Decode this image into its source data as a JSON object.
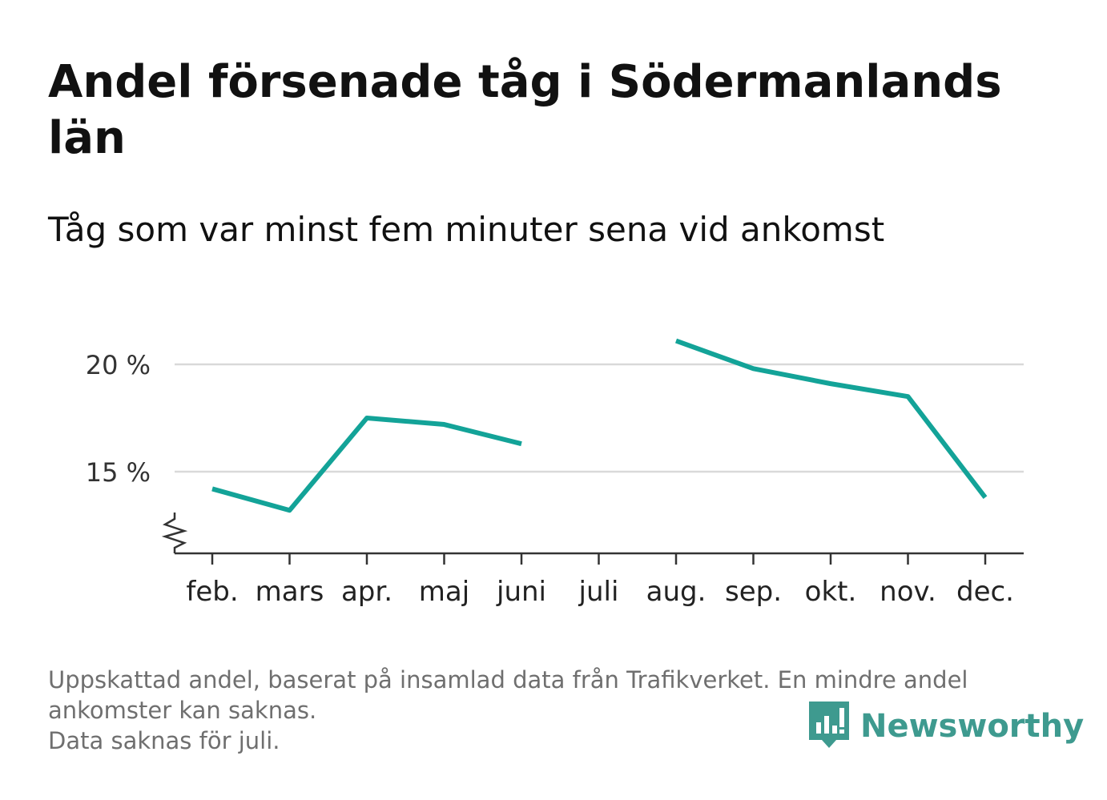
{
  "title": "Andel försenade tåg i Södermanlands län",
  "subtitle": "Tåg som var minst fem minuter sena vid ankomst",
  "footnote": {
    "line1": "Uppskattad andel, baserat på insamlad data från Trafikverket. En mindre andel",
    "line2": "ankomster kan saknas.",
    "line3": "Data saknas för juli."
  },
  "logo": {
    "text": "Newsworthy",
    "color": "#3e9a8f"
  },
  "chart_data": {
    "type": "line",
    "categories": [
      "feb.",
      "mars",
      "apr.",
      "maj",
      "juni",
      "juli",
      "aug.",
      "sep.",
      "okt.",
      "nov.",
      "dec."
    ],
    "series": [
      {
        "values": [
          14.2,
          13.2,
          17.5,
          17.2,
          16.3,
          null,
          21.1,
          19.8,
          19.1,
          18.5,
          13.8
        ]
      }
    ],
    "y_ticks": [
      15,
      20
    ],
    "y_tick_labels": [
      "15 %",
      "20 %"
    ],
    "ylim": [
      11.2,
      22.5
    ],
    "y_axis_break": true,
    "grid": true,
    "line_color": "#13a398"
  }
}
